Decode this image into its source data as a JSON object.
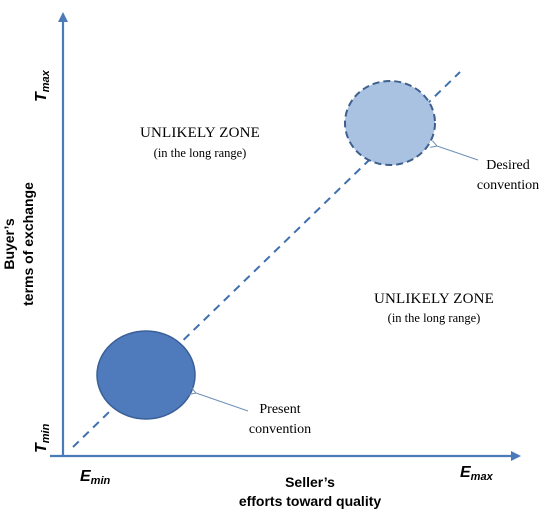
{
  "axes": {
    "x_title_line1": "Seller’s",
    "x_title_line2": "efforts toward quality",
    "y_title_line1": "Buyer’s",
    "y_title_line2": "terms of exchange",
    "x_min_main": "E",
    "x_min_sub": "min",
    "x_max_main": "E",
    "x_max_sub": "max",
    "y_min_main": "T",
    "y_min_sub": "min",
    "y_max_main": "T",
    "y_max_sub": "max"
  },
  "zones": {
    "upper_title": "UNLIKELY ZONE",
    "upper_sub": "(in the long range)",
    "lower_title": "UNLIKELY ZONE",
    "lower_sub": "(in the long range)"
  },
  "conventions": {
    "present_line1": "Present",
    "present_line2": "convention",
    "desired_line1": "Desired",
    "desired_line2": "convention"
  },
  "colors": {
    "axis": "#4a7ab8",
    "present_fill": "#4f7bbd",
    "present_stroke": "#3a5f97",
    "desired_fill": "#a9c2e2",
    "desired_stroke": "#3f5f8c",
    "diagonal": "#3f6fae"
  }
}
